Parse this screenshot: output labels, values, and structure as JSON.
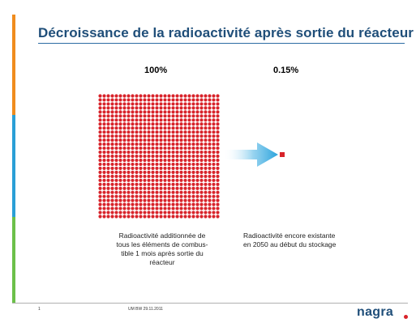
{
  "slide": {
    "title": "Décroissance de la radioactivité après sortie du réacteur",
    "left_block": {
      "percent_label": "100%",
      "caption": "Radioactivité additionnée de\ntous les éléments de combus-\ntible 1 mois après sortie du\nréacteur"
    },
    "right_block": {
      "percent_label": "0.15%",
      "caption": "Radioactivité encore existante\nen 2050 au début du stockage"
    },
    "footer": {
      "page_number": "1",
      "reference": "UM BW 29.11.2011",
      "logo_text": "nagra"
    },
    "icons": {
      "arrow": "arrow-right-icon",
      "logo_dot": "logo-dot-icon"
    }
  },
  "colors": {
    "title": "#1f4e79",
    "dot_red": "#d8232a",
    "bar_orange": "#f08c1e",
    "bar_blue": "#2a9fd6",
    "bar_green": "#6cc04a",
    "arrow_blue": "#2aa3dc",
    "logo_dot": "#d8232a"
  }
}
